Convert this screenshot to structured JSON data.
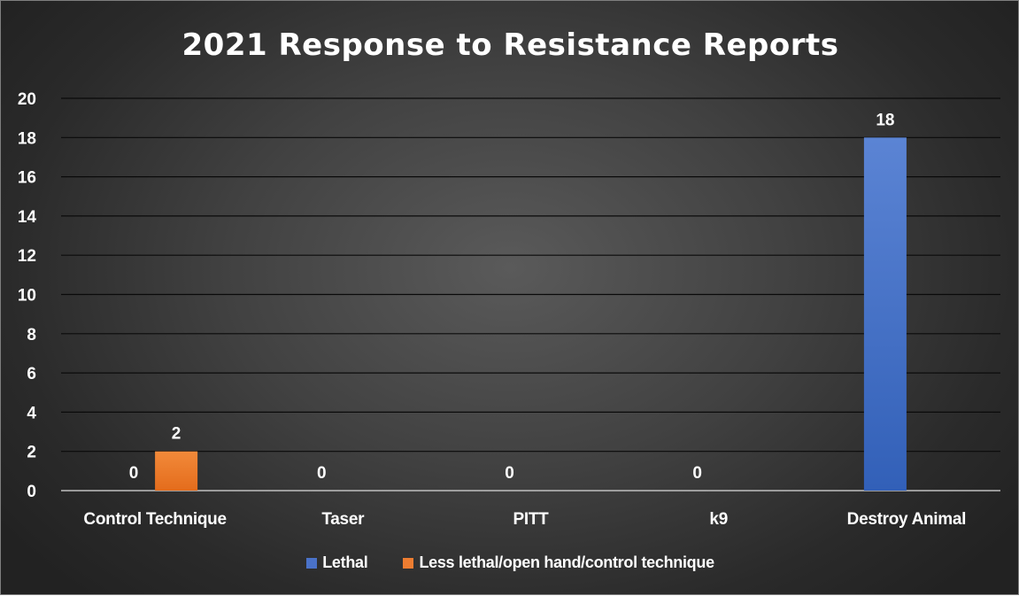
{
  "chart_data": {
    "type": "bar",
    "title": "2021 Response to Resistance Reports",
    "categories": [
      "Control Technique",
      "Taser",
      "PITT",
      "k9",
      "Destroy Animal"
    ],
    "series": [
      {
        "name": "Lethal",
        "color": "#4a72c8",
        "values": [
          0,
          0,
          0,
          0,
          18
        ]
      },
      {
        "name": "Less lethal/open hand/control technique",
        "color": "#ed7d31",
        "values": [
          2,
          null,
          null,
          null,
          null
        ]
      }
    ],
    "data_labels": [
      {
        "category_index": 0,
        "series_index": 0,
        "text": "0"
      },
      {
        "category_index": 0,
        "series_index": 1,
        "text": "2"
      },
      {
        "category_index": 1,
        "series_index": 0,
        "text": "0"
      },
      {
        "category_index": 2,
        "series_index": 0,
        "text": "0"
      },
      {
        "category_index": 3,
        "series_index": 0,
        "text": "0"
      },
      {
        "category_index": 4,
        "series_index": 0,
        "text": "18"
      }
    ],
    "y_ticks": [
      "0",
      "2",
      "4",
      "6",
      "8",
      "10",
      "12",
      "14",
      "16",
      "18",
      "20"
    ],
    "ylim": [
      0,
      20
    ],
    "grid": true,
    "legend_position": "bottom",
    "xlabel": "",
    "ylabel": ""
  }
}
